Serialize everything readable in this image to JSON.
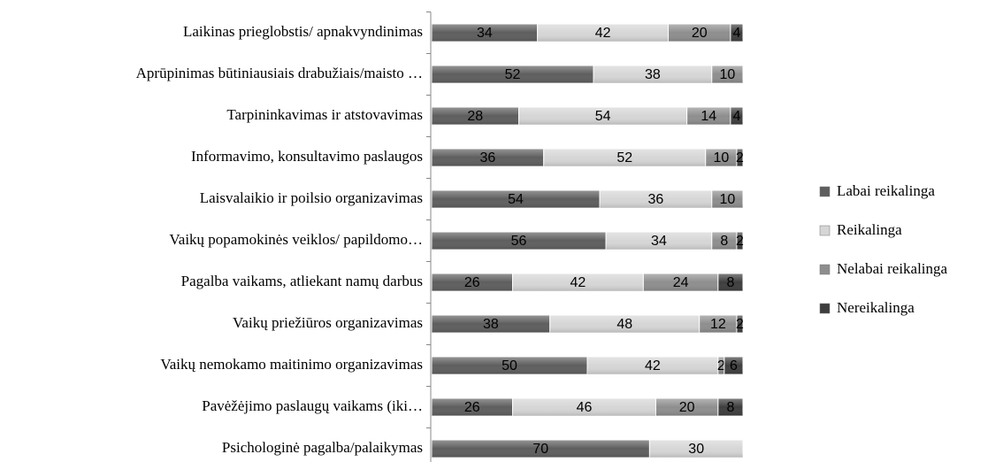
{
  "chart_data": {
    "type": "stacked-barh",
    "categories": [
      "Laikinas prieglobstis/ apnakvyndinimas",
      "Aprūpinimas būtiniausiais drabužiais/maisto …",
      "Tarpininkavimas ir atstovavimas",
      "Informavimo, konsultavimo paslaugos",
      "Laisvalaikio ir poilsio organizavimas",
      "Vaikų popamokinės veiklos/ papildomo…",
      "Pagalba vaikams, atliekant namų darbus",
      "Vaikų priežiūros organizavimas",
      "Vaikų nemokamo maitinimo organizavimas",
      "Pavėžėjimo paslaugų vaikams (iki…",
      "Psichologinė pagalba/palaikymas"
    ],
    "series": [
      {
        "name": "Labai reikalinga",
        "color": "#5e5e5e",
        "values": [
          34,
          52,
          28,
          36,
          54,
          56,
          26,
          38,
          50,
          26,
          70
        ]
      },
      {
        "name": "Reikalinga",
        "color": "#d6d6d6",
        "values": [
          42,
          38,
          54,
          52,
          36,
          34,
          42,
          48,
          42,
          46,
          30
        ]
      },
      {
        "name": "Nelabai reikalinga",
        "color": "#8e8e8e",
        "values": [
          20,
          10,
          14,
          10,
          10,
          8,
          24,
          12,
          2,
          20,
          null
        ]
      },
      {
        "name": "Nereikalinga",
        "color": "#3e3e3e",
        "values": [
          4,
          null,
          4,
          2,
          null,
          2,
          8,
          2,
          6,
          8,
          null
        ]
      }
    ],
    "xlim": [
      0,
      100
    ],
    "legend": "right"
  }
}
